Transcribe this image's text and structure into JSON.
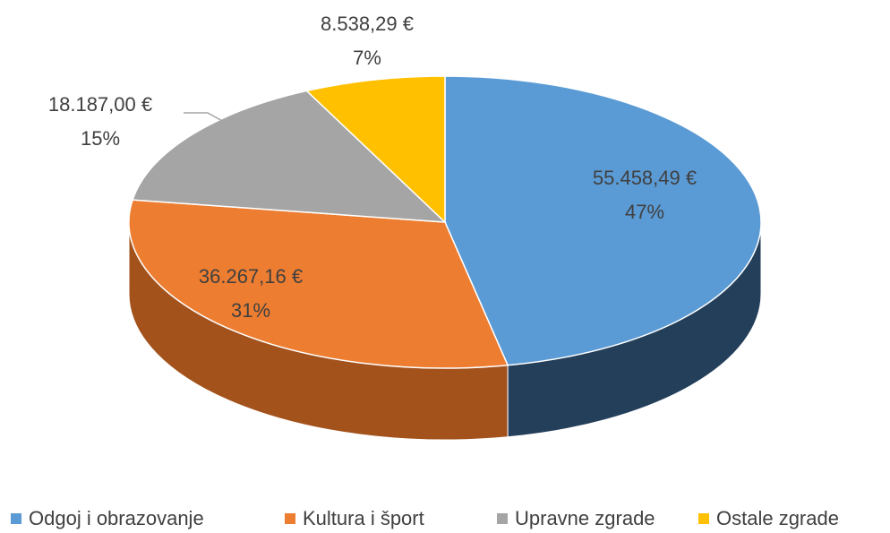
{
  "chart_data": {
    "type": "pie3d",
    "categories": [
      "Odgoj i obrazovanje",
      "Kultura i šport",
      "Upravne zgrade",
      "Ostale zgrade"
    ],
    "values": [
      55458.49,
      36267.16,
      18187.0,
      8538.29
    ],
    "value_labels": [
      "55.458,49 €",
      "36.267,16 €",
      "18.187,00 €",
      "8.538,29 €"
    ],
    "percent_labels": [
      "47%",
      "31%",
      "15%",
      "7%"
    ],
    "colors": [
      "#5b9bd5",
      "#ed7d31",
      "#a5a5a5",
      "#ffc000"
    ],
    "side_colors": [
      "#243f5a",
      "#a3521c",
      "#6e6e6e",
      "#a67c00"
    ],
    "legend": "bottom"
  }
}
